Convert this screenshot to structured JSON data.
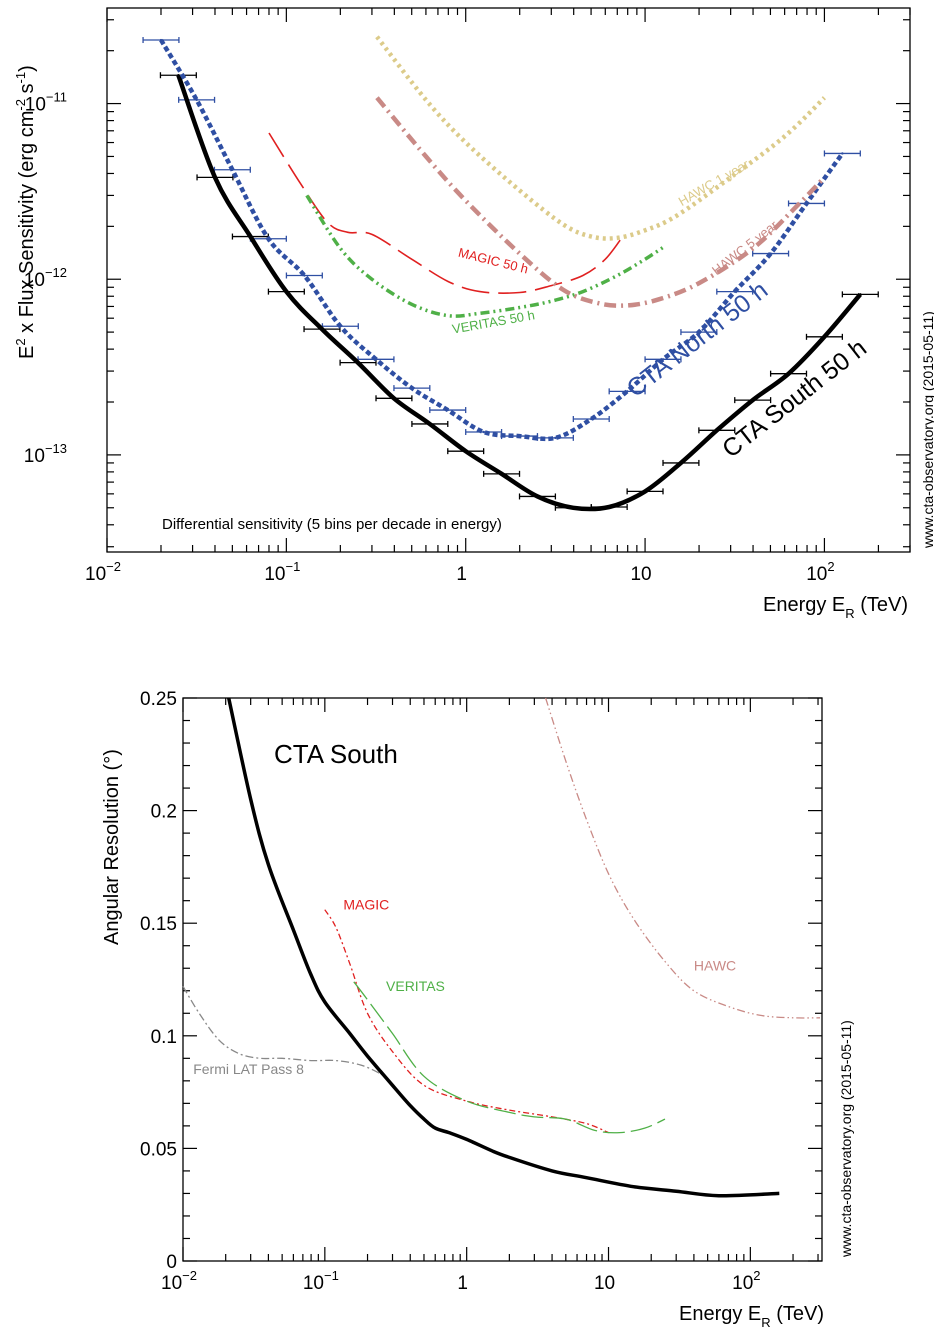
{
  "chart_data": [
    {
      "type": "line",
      "ylabel_parts": {
        "pre": "E",
        "sup1": "2",
        "mid": " x Flux Sensitivity (erg cm",
        "sup2": "-2",
        "mid2": " s",
        "sup3": "-1",
        "post": ")"
      },
      "xlabel_parts": {
        "pre": "Energy E",
        "sub": "R",
        "post": " (TeV)"
      },
      "xscale": "log",
      "yscale": "log",
      "xlim": [
        0.01,
        300
      ],
      "ylim": [
        2.8e-14,
        3.5e-11
      ],
      "x_ticks": [
        {
          "v": 0.01,
          "base": "10",
          "exp": "−2"
        },
        {
          "v": 0.1,
          "base": "10",
          "exp": "−1"
        },
        {
          "v": 1,
          "base": "1",
          "exp": ""
        },
        {
          "v": 10,
          "base": "10",
          "exp": ""
        },
        {
          "v": 100,
          "base": "10",
          "exp": "2"
        }
      ],
      "y_ticks": [
        {
          "v": 1e-13,
          "base": "10",
          "exp": "−13"
        },
        {
          "v": 1e-12,
          "base": "10",
          "exp": "−12"
        },
        {
          "v": 1e-11,
          "base": "10",
          "exp": "−11"
        }
      ],
      "watermark": "www.cta-observatory.org (2015-05-11)",
      "note": "Differential sensitivity (5 bins per decade in energy)",
      "series": [
        {
          "name": "CTA South 50 h",
          "color": "#000000",
          "dash": "",
          "width": 4.5,
          "x": [
            0.025,
            0.04,
            0.063,
            0.1,
            0.158,
            0.251,
            0.398,
            0.631,
            1.0,
            1.585,
            2.512,
            3.981,
            6.31,
            10.0,
            15.85,
            25.12,
            39.81,
            63.1,
            100,
            158.5
          ],
          "y": [
            1.45e-11,
            3.8e-12,
            1.75e-12,
            8.5e-13,
            5.2e-13,
            3.35e-13,
            2.1e-13,
            1.5e-13,
            1.05e-13,
            7.8e-14,
            5.8e-14,
            5e-14,
            5.05e-14,
            6.2e-14,
            9e-14,
            1.38e-13,
            2.05e-13,
            2.9e-13,
            4.7e-13,
            8.2e-13
          ],
          "errbars": true,
          "err_color": "#000000"
        },
        {
          "name": "CTA North 50 h",
          "color": "#2f4fa3",
          "dash": "5,3",
          "width": 4.5,
          "x": [
            0.02,
            0.0316,
            0.05,
            0.0794,
            0.126,
            0.2,
            0.316,
            0.501,
            0.794,
            1.259,
            1.995,
            3.162,
            5.012,
            7.943,
            12.59,
            19.95,
            31.62,
            50.12,
            79.43,
            125.9
          ],
          "y": [
            2.3e-11,
            1.05e-11,
            4.2e-12,
            1.7e-12,
            1.05e-12,
            5.4e-13,
            3.5e-13,
            2.4e-13,
            1.8e-13,
            1.35e-13,
            1.28e-13,
            1.25e-13,
            1.6e-13,
            2.3e-13,
            3.5e-13,
            5e-13,
            8.5e-13,
            1.4e-12,
            2.7e-12,
            5.2e-12
          ],
          "errbars": true,
          "err_color": "#2f4fa3"
        },
        {
          "name": "MAGIC 50 h",
          "color": "#e02020",
          "dash": "28,9",
          "width": 1.6,
          "x": [
            0.08,
            0.12,
            0.17,
            0.22,
            0.3,
            0.5,
            0.8,
            1.2,
            2.0,
            3.0,
            4.5,
            6.0,
            7.5
          ],
          "y": [
            6.8e-12,
            3.5e-12,
            2.1e-12,
            1.85e-12,
            1.8e-12,
            1.3e-12,
            9.7e-13,
            8.5e-13,
            8.4e-13,
            9.2e-13,
            1.05e-12,
            1.3e-12,
            1.75e-12
          ]
        },
        {
          "name": "VERITAS 50 h",
          "color": "#4fb047",
          "dash": "9,4,2,4,2,4",
          "width": 3.5,
          "x": [
            0.13,
            0.2,
            0.3,
            0.5,
            0.8,
            1.2,
            2.0,
            3.0,
            4.5,
            7.0,
            10.0,
            13.0
          ],
          "y": [
            3e-12,
            1.5e-12,
            1e-12,
            7.2e-13,
            6.2e-13,
            6.4e-13,
            6.9e-13,
            7.5e-13,
            8.5e-13,
            1.05e-12,
            1.3e-12,
            1.55e-12
          ]
        },
        {
          "name": "HAWC 5 year",
          "color": "#c98a86",
          "dash": "12,5,2,5",
          "width": 4.5,
          "x": [
            0.32,
            0.6,
            1.0,
            2.0,
            3.5,
            5.5,
            8.0,
            12,
            20,
            40,
            70,
            100
          ],
          "y": [
            1.08e-11,
            5e-12,
            2.8e-12,
            1.4e-12,
            8.7e-13,
            7.3e-13,
            7.1e-13,
            7.7e-13,
            9.5e-13,
            1.5e-12,
            2.6e-12,
            3.8e-12
          ]
        },
        {
          "name": "HAWC 1 year",
          "color": "#dccb8a",
          "dash": "3,4",
          "width": 4.5,
          "x": [
            0.32,
            0.6,
            1.0,
            2.0,
            3.5,
            5.0,
            7.0,
            10.0,
            15,
            30,
            60,
            100
          ],
          "y": [
            2.4e-11,
            1.05e-11,
            6e-12,
            3.2e-12,
            2.05e-12,
            1.75e-12,
            1.72e-12,
            1.9e-12,
            2.3e-12,
            3.8e-12,
            6.5e-12,
            1.08e-11
          ]
        }
      ],
      "labels": [
        {
          "text": "CTA South 50 h",
          "color": "#000000",
          "size": 25,
          "rot": -38,
          "x": 30,
          "y": 9.5e-14
        },
        {
          "text": "CTA North 50 h",
          "color": "#2f4fa3",
          "size": 25,
          "rot": -38,
          "x": 8.8,
          "y": 2.1e-13
        },
        {
          "text": "MAGIC 50 h",
          "color": "#e02020",
          "size": 13,
          "rot": 14,
          "x": 0.9,
          "y": 1.35e-12
        },
        {
          "text": "VERITAS 50 h",
          "color": "#4fb047",
          "size": 13,
          "rot": -10,
          "x": 0.85,
          "y": 4.9e-13
        },
        {
          "text": "HAWC 5 year",
          "color": "#c98a86",
          "size": 13,
          "rot": -38,
          "x": 25,
          "y": 1.05e-12
        },
        {
          "text": "HAWC 1 year",
          "color": "#dccb8a",
          "size": 13,
          "rot": -30,
          "x": 16,
          "y": 2.6e-12
        }
      ]
    },
    {
      "type": "line",
      "ylabel": "Angular Resolution (°)",
      "xlabel_parts": {
        "pre": "Energy E",
        "sub": "R",
        "post": " (TeV)"
      },
      "xscale": "log",
      "yscale": "linear",
      "xlim": [
        0.01,
        320
      ],
      "ylim": [
        0,
        0.25
      ],
      "x_ticks": [
        {
          "v": 0.01,
          "base": "10",
          "exp": "−2"
        },
        {
          "v": 0.1,
          "base": "10",
          "exp": "−1"
        },
        {
          "v": 1,
          "base": "1",
          "exp": ""
        },
        {
          "v": 10,
          "base": "10",
          "exp": ""
        },
        {
          "v": 100,
          "base": "10",
          "exp": "2"
        }
      ],
      "y_ticks": [
        {
          "v": 0,
          "label": "0"
        },
        {
          "v": 0.05,
          "label": "0.05"
        },
        {
          "v": 0.1,
          "label": "0.1"
        },
        {
          "v": 0.15,
          "label": "0.15"
        },
        {
          "v": 0.2,
          "label": "0.2"
        },
        {
          "v": 0.25,
          "label": "0.25"
        }
      ],
      "watermark": "www.cta-observatory.org (2015-05-11)",
      "title": "CTA South",
      "series": [
        {
          "name": "CTA South",
          "color": "#000000",
          "dash": "",
          "width": 3.5,
          "x": [
            0.021,
            0.03,
            0.04,
            0.06,
            0.08,
            0.1,
            0.15,
            0.2,
            0.3,
            0.4,
            0.5,
            0.6,
            0.75,
            1.0,
            1.5,
            2.0,
            4.0,
            7.0,
            15,
            30,
            60,
            160
          ],
          "y": [
            0.25,
            0.205,
            0.176,
            0.147,
            0.127,
            0.115,
            0.101,
            0.091,
            0.078,
            0.069,
            0.063,
            0.059,
            0.057,
            0.054,
            0.049,
            0.046,
            0.04,
            0.037,
            0.033,
            0.031,
            0.029,
            0.03
          ]
        },
        {
          "name": "MAGIC",
          "color": "#e02020",
          "dash": "6,3,2,3",
          "width": 1.3,
          "x": [
            0.1,
            0.12,
            0.15,
            0.2,
            0.3,
            0.5,
            1.0,
            2.0,
            4.0,
            7.0,
            10.0
          ],
          "y": [
            0.156,
            0.148,
            0.132,
            0.11,
            0.093,
            0.078,
            0.071,
            0.067,
            0.064,
            0.061,
            0.057
          ]
        },
        {
          "name": "VERITAS",
          "color": "#4fb047",
          "dash": "22,6",
          "width": 1.3,
          "x": [
            0.16,
            0.2,
            0.3,
            0.5,
            1.0,
            2.0,
            3.0,
            5.0,
            8.0,
            12.0,
            18.0,
            25.0
          ],
          "y": [
            0.124,
            0.116,
            0.101,
            0.082,
            0.071,
            0.066,
            0.064,
            0.063,
            0.058,
            0.057,
            0.059,
            0.063
          ]
        },
        {
          "name": "HAWC",
          "color": "#c98a86",
          "dash": "8,3,1.5,3,1.5,3",
          "width": 1.3,
          "x": [
            3.6,
            5.0,
            7.0,
            10.0,
            15.0,
            25.0,
            40.0,
            70.0,
            120,
            200,
            310
          ],
          "y": [
            0.25,
            0.222,
            0.196,
            0.172,
            0.152,
            0.133,
            0.12,
            0.113,
            0.109,
            0.108,
            0.108
          ]
        },
        {
          "name": "Fermi LAT Pass 8",
          "color": "#888888",
          "dash": "8,3,2,3",
          "width": 1.3,
          "x": [
            0.01,
            0.013,
            0.018,
            0.025,
            0.035,
            0.05,
            0.08,
            0.12,
            0.18,
            0.25
          ],
          "y": [
            0.122,
            0.11,
            0.098,
            0.092,
            0.09,
            0.09,
            0.089,
            0.089,
            0.087,
            0.083
          ]
        }
      ],
      "labels": [
        {
          "text": "MAGIC",
          "color": "#e02020",
          "size": 14,
          "rot": 0,
          "x": 0.135,
          "y": 0.156
        },
        {
          "text": "VERITAS",
          "color": "#4fb047",
          "size": 14,
          "rot": 0,
          "x": 0.27,
          "y": 0.12
        },
        {
          "text": "HAWC",
          "color": "#c98a86",
          "size": 14,
          "rot": 0,
          "x": 40,
          "y": 0.129
        },
        {
          "text": "Fermi LAT Pass 8",
          "color": "#888888",
          "size": 14,
          "rot": 0,
          "x": 0.0118,
          "y": 0.083
        }
      ]
    }
  ]
}
